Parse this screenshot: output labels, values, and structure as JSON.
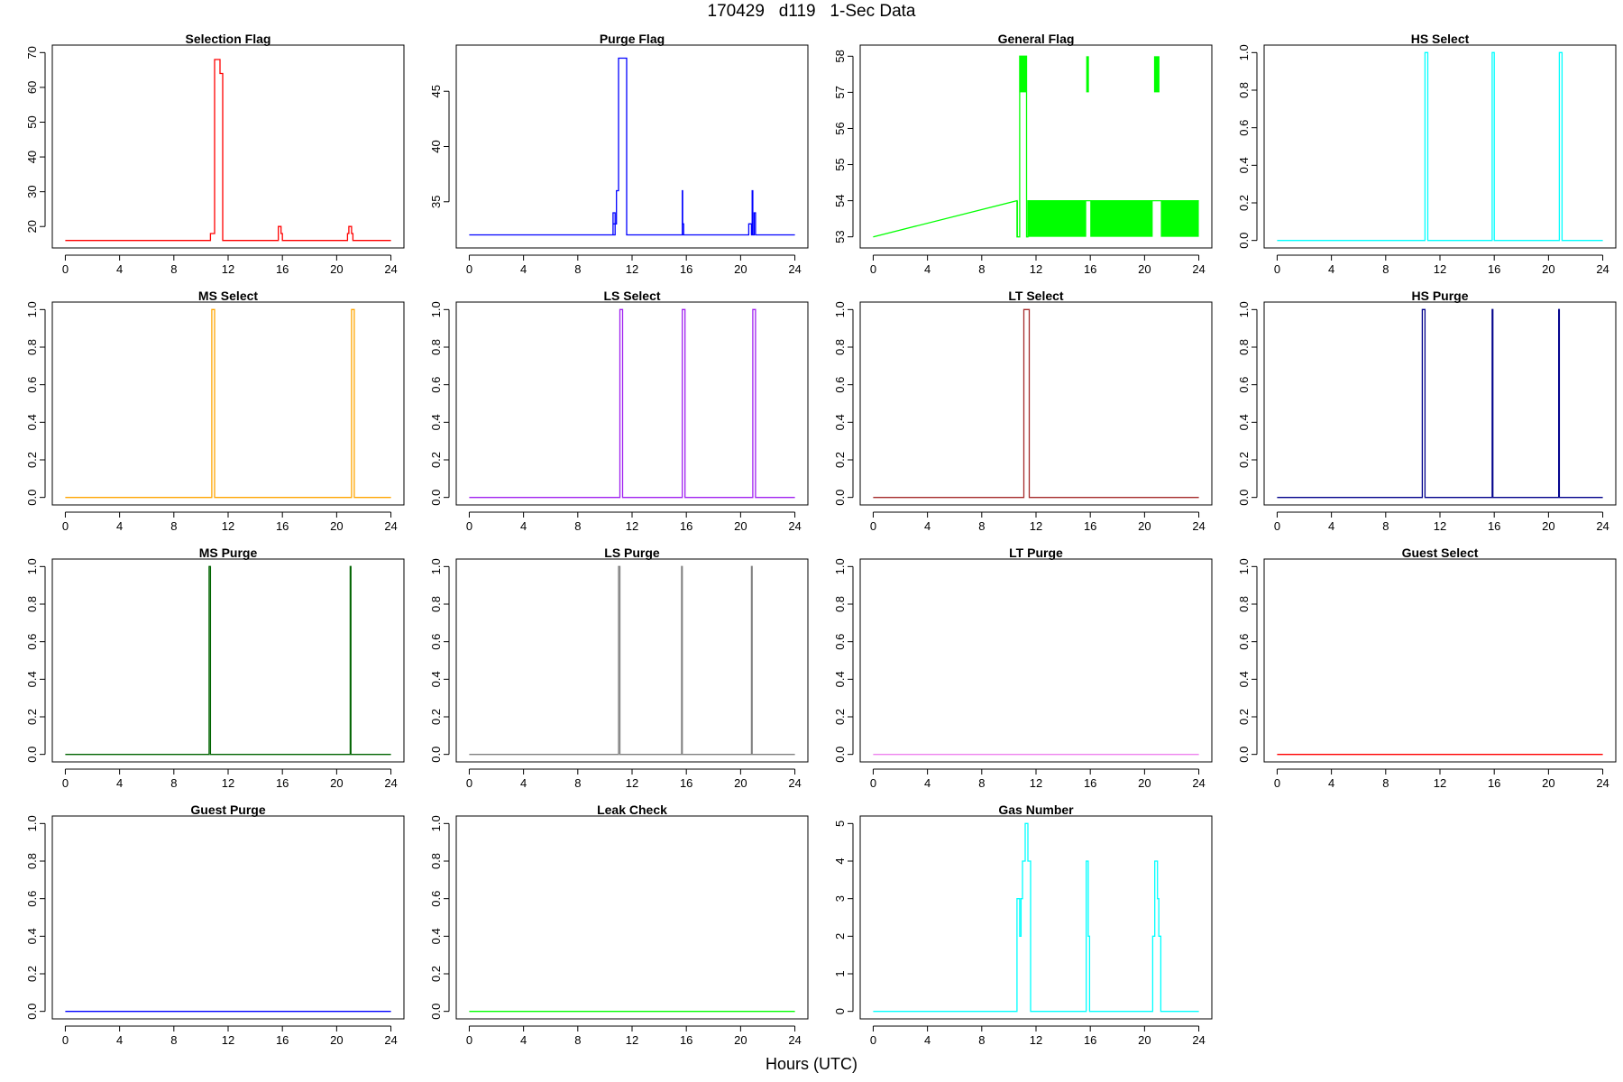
{
  "title": "170429   d119   1-Sec Data",
  "xlabel": "Hours (UTC)",
  "chart_data": [
    {
      "type": "line",
      "title": "Selection Flag",
      "color": "#ff0000",
      "xlim": [
        0,
        24
      ],
      "ylim": [
        16,
        70
      ],
      "xticks": [
        0,
        4,
        8,
        12,
        16,
        20,
        24
      ],
      "yticks": [
        20,
        30,
        40,
        50,
        60,
        70
      ],
      "ytick_labels": [
        "20",
        "30",
        "40",
        "50",
        "60",
        "70"
      ],
      "x": [
        0,
        10.7,
        10.7,
        11.0,
        11.0,
        11.4,
        11.4,
        11.6,
        11.6,
        15.7,
        15.7,
        15.9,
        15.9,
        16.0,
        16.0,
        20.8,
        20.8,
        20.9,
        20.9,
        21.1,
        21.1,
        21.2,
        21.2,
        24
      ],
      "y": [
        16,
        16,
        18,
        18,
        68,
        68,
        64,
        64,
        16,
        16,
        20,
        20,
        18,
        18,
        16,
        16,
        18,
        18,
        20,
        20,
        18,
        18,
        16,
        16
      ]
    },
    {
      "type": "line",
      "title": "Purge Flag",
      "color": "#0000ff",
      "xlim": [
        0,
        24
      ],
      "ylim": [
        31.5,
        48.5
      ],
      "xticks": [
        0,
        4,
        8,
        12,
        16,
        20,
        24
      ],
      "yticks": [
        35,
        40,
        45
      ],
      "ytick_labels": [
        "35",
        "40",
        "45"
      ],
      "x": [
        0,
        10.6,
        10.6,
        10.75,
        10.75,
        10.6,
        10.6,
        10.85,
        10.85,
        11.0,
        11.0,
        11.3,
        11.3,
        11.6,
        11.6,
        15.7,
        15.7,
        15.73,
        15.73,
        15.8,
        15.8,
        15.7,
        15.7,
        20.6,
        20.6,
        20.8,
        20.8,
        20.85,
        20.85,
        20.9,
        20.9,
        21.0,
        21.0,
        21.1,
        21.1,
        24
      ],
      "y": [
        32,
        32,
        34,
        34,
        32,
        32,
        33,
        33,
        36,
        36,
        48,
        48,
        48,
        48,
        32,
        32,
        36,
        36,
        33,
        33,
        32,
        32,
        32,
        32,
        33,
        33,
        32,
        32,
        36,
        36,
        32,
        32,
        34,
        34,
        32,
        32
      ]
    },
    {
      "type": "line",
      "title": "General Flag",
      "color": "#00ff00",
      "xlim": [
        0,
        24
      ],
      "ylim": [
        52.9,
        58.1
      ],
      "xticks": [
        0,
        4,
        8,
        12,
        16,
        20,
        24
      ],
      "yticks": [
        53,
        54,
        55,
        56,
        57,
        58
      ],
      "ytick_labels": [
        "53",
        "54",
        "55",
        "56",
        "57",
        "58"
      ],
      "x": [
        0,
        10.6,
        10.6,
        10.8,
        10.8,
        11.3,
        11.3,
        11.4,
        11.4,
        24
      ],
      "y": [
        53,
        54,
        53,
        53,
        58,
        58,
        53,
        53,
        54,
        54
      ],
      "fill_bands": [
        {
          "x0": 10.6,
          "x1": 10.65,
          "y0": 53,
          "y1": 54
        },
        {
          "x0": 10.8,
          "x1": 11.3,
          "y0": 57,
          "y1": 58
        },
        {
          "x0": 11.4,
          "x1": 15.7,
          "y0": 53,
          "y1": 54
        },
        {
          "x0": 15.7,
          "x1": 15.9,
          "y0": 57,
          "y1": 58
        },
        {
          "x0": 16.0,
          "x1": 20.6,
          "y0": 53,
          "y1": 54
        },
        {
          "x0": 20.7,
          "x1": 21.1,
          "y0": 57,
          "y1": 58
        },
        {
          "x0": 21.2,
          "x1": 24,
          "y0": 53,
          "y1": 54
        }
      ]
    },
    {
      "type": "line",
      "title": "HS Select",
      "color": "#00ffff",
      "xlim": [
        0,
        24
      ],
      "ylim": [
        0,
        1
      ],
      "xticks": [
        0,
        4,
        8,
        12,
        16,
        20,
        24
      ],
      "yticks": [
        0,
        0.2,
        0.4,
        0.6,
        0.8,
        1.0
      ],
      "ytick_labels": [
        "0.0",
        "0.2",
        "0.4",
        "0.6",
        "0.8",
        "1.0"
      ],
      "x": [
        0,
        10.9,
        10.9,
        11.1,
        11.1,
        15.85,
        15.85,
        16.0,
        16.0,
        20.8,
        20.8,
        21.0,
        21.0,
        24
      ],
      "y": [
        0,
        0,
        1,
        1,
        0,
        0,
        1,
        1,
        0,
        0,
        1,
        1,
        0,
        0
      ]
    },
    {
      "type": "line",
      "title": "MS Select",
      "color": "#ffa500",
      "xlim": [
        0,
        24
      ],
      "ylim": [
        0,
        1
      ],
      "xticks": [
        0,
        4,
        8,
        12,
        16,
        20,
        24
      ],
      "yticks": [
        0,
        0.2,
        0.4,
        0.6,
        0.8,
        1.0
      ],
      "ytick_labels": [
        "0.0",
        "0.2",
        "0.4",
        "0.6",
        "0.8",
        "1.0"
      ],
      "x": [
        0,
        10.8,
        10.8,
        11.0,
        11.0,
        21.1,
        21.1,
        21.3,
        21.3,
        24
      ],
      "y": [
        0,
        0,
        1,
        1,
        0,
        0,
        1,
        1,
        0,
        0
      ]
    },
    {
      "type": "line",
      "title": "LS Select",
      "color": "#a020f0",
      "xlim": [
        0,
        24
      ],
      "ylim": [
        0,
        1
      ],
      "xticks": [
        0,
        4,
        8,
        12,
        16,
        20,
        24
      ],
      "yticks": [
        0,
        0.2,
        0.4,
        0.6,
        0.8,
        1.0
      ],
      "ytick_labels": [
        "0.0",
        "0.2",
        "0.4",
        "0.6",
        "0.8",
        "1.0"
      ],
      "x": [
        0,
        11.1,
        11.1,
        11.3,
        11.3,
        15.7,
        15.7,
        15.9,
        15.9,
        20.9,
        20.9,
        21.1,
        21.1,
        24
      ],
      "y": [
        0,
        0,
        1,
        1,
        0,
        0,
        1,
        1,
        0,
        0,
        1,
        1,
        0,
        0
      ]
    },
    {
      "type": "line",
      "title": "LT Select",
      "color": "#a52a2a",
      "xlim": [
        0,
        24
      ],
      "ylim": [
        0,
        1
      ],
      "xticks": [
        0,
        4,
        8,
        12,
        16,
        20,
        24
      ],
      "yticks": [
        0,
        0.2,
        0.4,
        0.6,
        0.8,
        1.0
      ],
      "ytick_labels": [
        "0.0",
        "0.2",
        "0.4",
        "0.6",
        "0.8",
        "1.0"
      ],
      "x": [
        0,
        11.1,
        11.1,
        11.5,
        11.5,
        24
      ],
      "y": [
        0,
        0,
        1,
        1,
        0,
        0
      ]
    },
    {
      "type": "line",
      "title": "HS Purge",
      "color": "#00008b",
      "xlim": [
        0,
        24
      ],
      "ylim": [
        0,
        1
      ],
      "xticks": [
        0,
        4,
        8,
        12,
        16,
        20,
        24
      ],
      "yticks": [
        0,
        0.2,
        0.4,
        0.6,
        0.8,
        1.0
      ],
      "ytick_labels": [
        "0.0",
        "0.2",
        "0.4",
        "0.6",
        "0.8",
        "1.0"
      ],
      "x": [
        0,
        10.7,
        10.7,
        10.9,
        10.9,
        15.85,
        15.85,
        15.9,
        15.9,
        20.75,
        20.75,
        20.8,
        20.8,
        24
      ],
      "y": [
        0,
        0,
        1,
        1,
        0,
        0,
        1,
        1,
        0,
        0,
        1,
        1,
        0,
        0
      ]
    },
    {
      "type": "line",
      "title": "MS Purge",
      "color": "#006400",
      "xlim": [
        0,
        24
      ],
      "ylim": [
        0,
        1
      ],
      "xticks": [
        0,
        4,
        8,
        12,
        16,
        20,
        24
      ],
      "yticks": [
        0,
        0.2,
        0.4,
        0.6,
        0.8,
        1.0
      ],
      "ytick_labels": [
        "0.0",
        "0.2",
        "0.4",
        "0.6",
        "0.8",
        "1.0"
      ],
      "x": [
        0,
        10.6,
        10.6,
        10.7,
        10.7,
        21.0,
        21.0,
        21.05,
        21.05,
        24
      ],
      "y": [
        0,
        0,
        1,
        1,
        0,
        0,
        1,
        1,
        0,
        0
      ]
    },
    {
      "type": "line",
      "title": "LS Purge",
      "color": "#808080",
      "xlim": [
        0,
        24
      ],
      "ylim": [
        0,
        1
      ],
      "xticks": [
        0,
        4,
        8,
        12,
        16,
        20,
        24
      ],
      "yticks": [
        0,
        0.2,
        0.4,
        0.6,
        0.8,
        1.0
      ],
      "ytick_labels": [
        "0.0",
        "0.2",
        "0.4",
        "0.6",
        "0.8",
        "1.0"
      ],
      "x": [
        0,
        11.0,
        11.0,
        11.1,
        11.1,
        15.65,
        15.65,
        15.7,
        15.7,
        20.8,
        20.8,
        20.85,
        20.85,
        24
      ],
      "y": [
        0,
        0,
        1,
        1,
        0,
        0,
        1,
        1,
        0,
        0,
        1,
        1,
        0,
        0
      ]
    },
    {
      "type": "line",
      "title": "LT Purge",
      "color": "#ee82ee",
      "xlim": [
        0,
        24
      ],
      "ylim": [
        0,
        1
      ],
      "xticks": [
        0,
        4,
        8,
        12,
        16,
        20,
        24
      ],
      "yticks": [
        0,
        0.2,
        0.4,
        0.6,
        0.8,
        1.0
      ],
      "ytick_labels": [
        "0.0",
        "0.2",
        "0.4",
        "0.6",
        "0.8",
        "1.0"
      ],
      "x": [
        0,
        24
      ],
      "y": [
        0,
        0
      ]
    },
    {
      "type": "line",
      "title": "Guest Select",
      "color": "#ff0000",
      "xlim": [
        0,
        24
      ],
      "ylim": [
        0,
        1
      ],
      "xticks": [
        0,
        4,
        8,
        12,
        16,
        20,
        24
      ],
      "yticks": [
        0,
        0.2,
        0.4,
        0.6,
        0.8,
        1.0
      ],
      "ytick_labels": [
        "0.0",
        "0.2",
        "0.4",
        "0.6",
        "0.8",
        "1.0"
      ],
      "x": [
        0,
        24
      ],
      "y": [
        0,
        0
      ]
    },
    {
      "type": "line",
      "title": "Guest Purge",
      "color": "#0000ff",
      "xlim": [
        0,
        24
      ],
      "ylim": [
        0,
        1
      ],
      "xticks": [
        0,
        4,
        8,
        12,
        16,
        20,
        24
      ],
      "yticks": [
        0,
        0.2,
        0.4,
        0.6,
        0.8,
        1.0
      ],
      "ytick_labels": [
        "0.0",
        "0.2",
        "0.4",
        "0.6",
        "0.8",
        "1.0"
      ],
      "x": [
        0,
        24
      ],
      "y": [
        0,
        0
      ]
    },
    {
      "type": "line",
      "title": "Leak Check",
      "color": "#00ff00",
      "xlim": [
        0,
        24
      ],
      "ylim": [
        0,
        1
      ],
      "xticks": [
        0,
        4,
        8,
        12,
        16,
        20,
        24
      ],
      "yticks": [
        0,
        0.2,
        0.4,
        0.6,
        0.8,
        1.0
      ],
      "ytick_labels": [
        "0.0",
        "0.2",
        "0.4",
        "0.6",
        "0.8",
        "1.0"
      ],
      "x": [
        0,
        24
      ],
      "y": [
        0,
        0
      ]
    },
    {
      "type": "line",
      "title": "Gas Number",
      "color": "#00ffff",
      "xlim": [
        0,
        24
      ],
      "ylim": [
        0,
        5
      ],
      "xticks": [
        0,
        4,
        8,
        12,
        16,
        20,
        24
      ],
      "yticks": [
        0,
        1,
        2,
        3,
        4,
        5
      ],
      "ytick_labels": [
        "0",
        "1",
        "2",
        "3",
        "4",
        "5"
      ],
      "x": [
        0,
        10.6,
        10.6,
        10.8,
        10.8,
        10.9,
        10.9,
        11.0,
        11.0,
        11.2,
        11.2,
        11.4,
        11.4,
        11.6,
        11.6,
        15.7,
        15.7,
        15.85,
        15.85,
        15.95,
        15.95,
        20.6,
        20.6,
        20.75,
        20.75,
        20.95,
        20.95,
        21.05,
        21.05,
        21.2,
        21.2,
        24
      ],
      "y": [
        0,
        0,
        3,
        3,
        2,
        2,
        3,
        3,
        4,
        4,
        5,
        5,
        4,
        4,
        0,
        0,
        4,
        4,
        2,
        2,
        0,
        0,
        2,
        2,
        4,
        4,
        3,
        3,
        2,
        2,
        0,
        0
      ]
    }
  ]
}
